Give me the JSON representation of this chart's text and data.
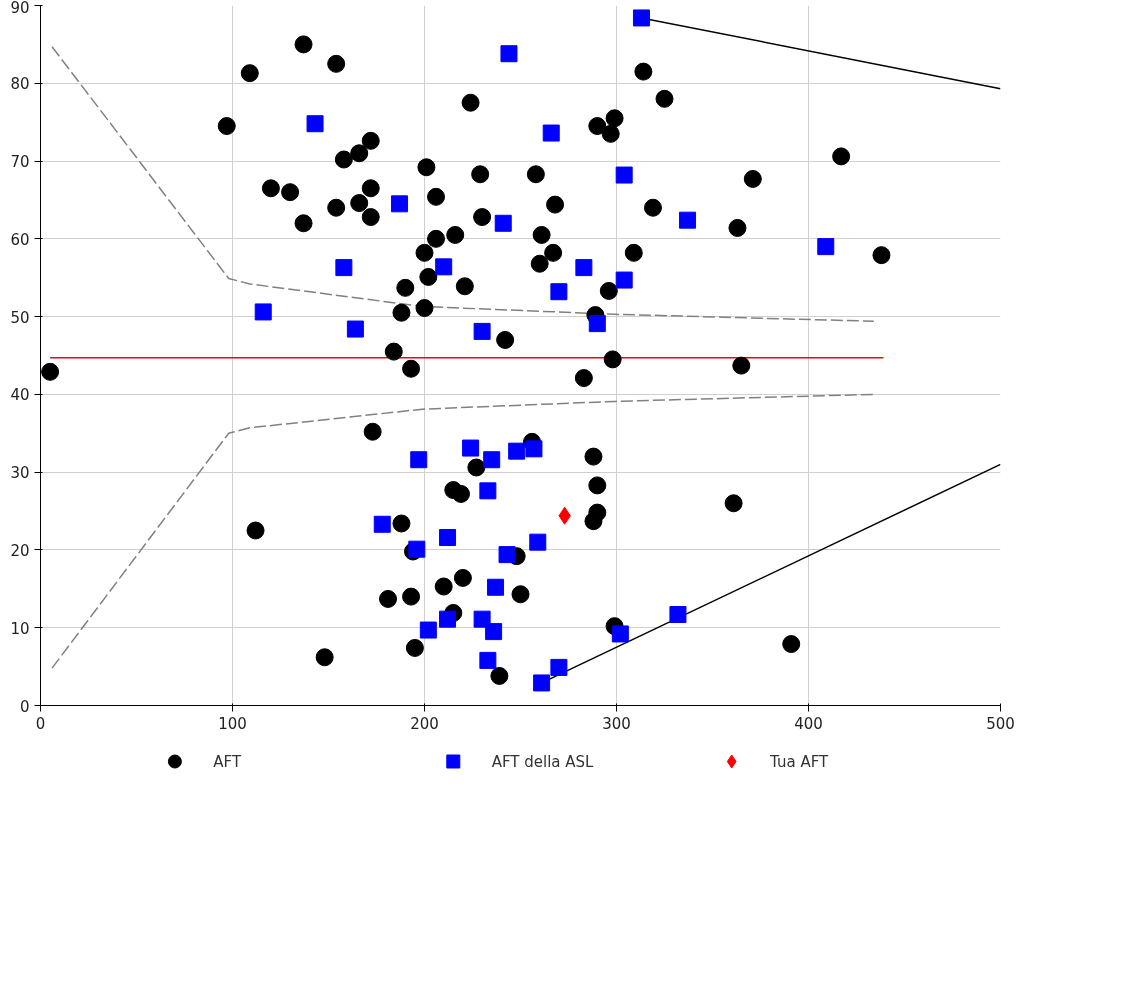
{
  "chart_data": {
    "type": "scatter",
    "xlim": [
      0,
      500
    ],
    "ylim": [
      0,
      90
    ],
    "xticks": [
      0,
      100,
      200,
      300,
      400,
      500
    ],
    "yticks": [
      0,
      10,
      20,
      30,
      40,
      50,
      60,
      70,
      80,
      90
    ],
    "grid": true,
    "legend": "bottom",
    "series": [
      {
        "type": "line",
        "color": "#808080",
        "line_style": "dashed",
        "marker": "none",
        "x": [
          6,
          98,
          109,
          199,
          299,
          434
        ],
        "values": [
          84.7,
          54.9,
          54.2,
          51.3,
          50.3,
          49.4
        ]
      },
      {
        "type": "line",
        "color": "#808080",
        "line_style": "dashed",
        "marker": "none",
        "x": [
          6,
          98,
          109,
          199,
          299,
          434
        ],
        "values": [
          4.8,
          35,
          35.7,
          38.1,
          39.1,
          40
        ]
      },
      {
        "type": "line",
        "color": "#ff0000",
        "line_style": "solid",
        "marker": "none",
        "x": [
          5,
          439
        ],
        "values": [
          44.7,
          44.7
        ]
      },
      {
        "type": "line",
        "color": "#000000",
        "line_style": "solid",
        "marker": "none",
        "x": [
          313,
          500
        ],
        "values": [
          88.4,
          79.3
        ]
      },
      {
        "type": "line",
        "color": "#000000",
        "line_style": "solid",
        "marker": "none",
        "x": [
          261,
          500
        ],
        "values": [
          2.9,
          31.0
        ]
      },
      {
        "name": "AFT",
        "color": "#000000",
        "marker": "circle",
        "x": [
          5,
          97,
          109,
          137,
          154,
          120,
          130,
          137,
          154,
          158,
          166,
          172,
          166,
          172,
          172,
          201,
          206,
          200,
          206,
          216,
          202,
          190,
          188,
          200,
          221,
          224,
          229,
          230,
          184,
          193,
          242,
          258,
          261,
          268,
          267,
          260,
          290,
          299,
          297,
          314,
          325,
          319,
          309,
          296,
          289,
          298,
          283,
          363,
          371,
          417,
          438,
          365,
          173,
          256,
          227,
          288,
          290,
          215,
          219,
          290,
          288,
          361,
          112,
          188,
          194,
          220,
          210,
          181,
          193,
          215,
          250,
          248,
          195,
          148,
          239,
          299,
          391
        ],
        "values": [
          42.9,
          74.5,
          81.3,
          85,
          82.5,
          66.5,
          66,
          62,
          64,
          70.2,
          71,
          72.6,
          64.6,
          66.5,
          62.8,
          69.2,
          65.4,
          58.2,
          60,
          60.5,
          55.1,
          53.7,
          50.5,
          51.1,
          53.9,
          77.5,
          68.3,
          62.8,
          45.5,
          43.3,
          47,
          68.3,
          60.5,
          64.4,
          58.2,
          56.8,
          74.5,
          75.5,
          73.5,
          81.5,
          78,
          64,
          58.2,
          53.3,
          50.2,
          44.5,
          42.1,
          61.4,
          67.7,
          70.6,
          57.9,
          43.7,
          35.2,
          33.9,
          30.6,
          32,
          28.3,
          27.7,
          27.2,
          24.8,
          23.7,
          26,
          22.5,
          23.4,
          19.8,
          16.4,
          15.3,
          13.7,
          14,
          11.9,
          14.3,
          19.2,
          7.4,
          6.2,
          3.8,
          10.2,
          7.9
        ]
      },
      {
        "name": "AFT della ASL",
        "color": "#0000ff",
        "marker": "square",
        "x": [
          313,
          244,
          143,
          266,
          304,
          187,
          241,
          337,
          409,
          158,
          210,
          283,
          304,
          270,
          116,
          290,
          164,
          230,
          224,
          235,
          248,
          257,
          197,
          233,
          178,
          196,
          212,
          259,
          243,
          237,
          202,
          212,
          230,
          236,
          332,
          302,
          233,
          270,
          261
        ],
        "values": [
          88.4,
          83.8,
          74.8,
          73.6,
          68.2,
          64.5,
          62,
          62.4,
          59,
          56.3,
          56.4,
          56.3,
          54.7,
          53.2,
          50.6,
          49.1,
          48.4,
          48.1,
          33.1,
          31.6,
          32.7,
          33,
          31.6,
          27.6,
          23.3,
          20.1,
          21.6,
          21,
          19.4,
          15.2,
          9.7,
          11.1,
          11.1,
          9.5,
          11.7,
          9.2,
          5.8,
          4.9,
          2.9
        ]
      },
      {
        "name": "Tua AFT",
        "color": "#ff0000",
        "marker": "diamond",
        "x": [
          273
        ],
        "values": [
          24.4
        ]
      }
    ]
  }
}
